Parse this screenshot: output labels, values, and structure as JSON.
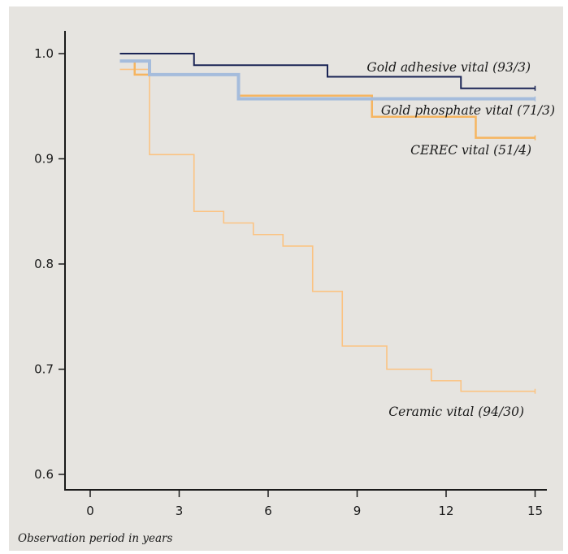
{
  "chart_data": {
    "type": "line",
    "step": true,
    "title": "",
    "xlabel": "Observation period in years",
    "ylabel": "",
    "xlim": [
      -1.3,
      16.2
    ],
    "ylim": [
      0.585,
      1.044
    ],
    "x_ticks": [
      0,
      3,
      6,
      9,
      12,
      15
    ],
    "x_tick_labels": [
      "0",
      "3",
      "6",
      "9",
      "12",
      "15"
    ],
    "y_ticks": [
      0.6,
      0.7,
      0.8,
      0.9,
      1.0
    ],
    "y_tick_labels": [
      "0.6",
      "0.7",
      "0.8",
      "0.9",
      "1.0"
    ],
    "grid": false,
    "series": [
      {
        "name": "Gold adhesive vital (93/3)",
        "color": "#1a2455",
        "x": [
          1,
          3.5,
          8,
          12.5,
          15
        ],
        "y": [
          1.0,
          0.989,
          0.978,
          0.967,
          0.967
        ]
      },
      {
        "name": "Gold phosphate vital (71/3)",
        "color": "#a5bcdc",
        "x": [
          1,
          2,
          5,
          15
        ],
        "y": [
          0.993,
          0.98,
          0.957,
          0.957
        ]
      },
      {
        "name": "CEREC vital (51/4)",
        "color": "#f6b560",
        "x": [
          1,
          1.5,
          5,
          9.5,
          13,
          15
        ],
        "y": [
          0.993,
          0.98,
          0.96,
          0.94,
          0.92,
          0.92
        ]
      },
      {
        "name": "Ceramic vital (94/30)",
        "color": "#fbc383",
        "x": [
          1,
          2,
          3.5,
          4.5,
          5.5,
          6.5,
          7.5,
          8.5,
          10,
          11.5,
          12.5,
          15
        ],
        "y": [
          0.985,
          0.904,
          0.85,
          0.839,
          0.828,
          0.817,
          0.774,
          0.722,
          0.7,
          0.689,
          0.679,
          0.679
        ]
      }
    ]
  }
}
